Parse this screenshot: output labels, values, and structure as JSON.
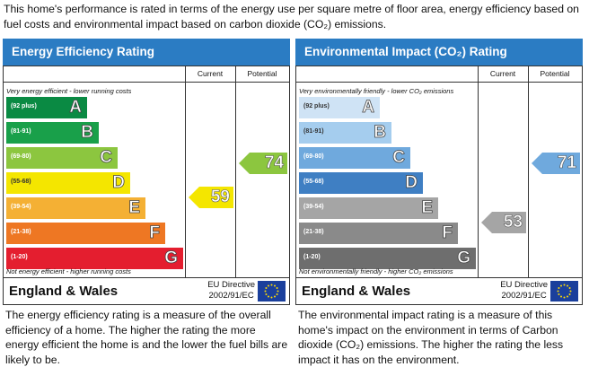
{
  "intro": "This home's performance is rated in terms of the energy use per square metre of floor area, energy efficiency based on fuel costs and environmental impact based on carbon dioxide (CO₂) emissions.",
  "energy": {
    "title": "Energy Efficiency Rating",
    "col_current": "Current",
    "col_potential": "Potential",
    "top_caption": "Very energy efficient - lower running costs",
    "bottom_caption": "Not energy efficient - higher running costs",
    "bands": [
      {
        "range": "(92 plus)",
        "letter": "A",
        "color": "#0a8a43"
      },
      {
        "range": "(81-91)",
        "letter": "B",
        "color": "#19a04a"
      },
      {
        "range": "(69-80)",
        "letter": "C",
        "color": "#8cc63f"
      },
      {
        "range": "(55-68)",
        "letter": "D",
        "color": "#f4e600"
      },
      {
        "range": "(39-54)",
        "letter": "E",
        "color": "#f4b034"
      },
      {
        "range": "(21-38)",
        "letter": "F",
        "color": "#ee7723"
      },
      {
        "range": "(1-20)",
        "letter": "G",
        "color": "#e41e2f"
      }
    ],
    "current": {
      "value": "59",
      "band": "D",
      "color": "#f4e600"
    },
    "potential": {
      "value": "74",
      "band": "C",
      "color": "#8cc63f"
    },
    "region": "England & Wales",
    "directive_line1": "EU Directive",
    "directive_line2": "2002/91/EC",
    "description": "The energy efficiency rating is a measure of the overall efficiency of a home. The higher the rating the more energy efficient the home is and the lower the fuel bills are likely to be."
  },
  "environment": {
    "title": "Environmental Impact (CO₂) Rating",
    "col_current": "Current",
    "col_potential": "Potential",
    "top_caption": "Very environmentally friendly - lower CO₂ emissions",
    "bottom_caption": "Not environmentally friendly - higher CO₂ emissions",
    "bands": [
      {
        "range": "(92 plus)",
        "letter": "A",
        "color": "#cfe3f5"
      },
      {
        "range": "(81-91)",
        "letter": "B",
        "color": "#a5cdee"
      },
      {
        "range": "(69-80)",
        "letter": "C",
        "color": "#6fa9dd"
      },
      {
        "range": "(55-68)",
        "letter": "D",
        "color": "#3f7fc3"
      },
      {
        "range": "(39-54)",
        "letter": "E",
        "color": "#a5a5a5"
      },
      {
        "range": "(21-38)",
        "letter": "F",
        "color": "#8a8a8a"
      },
      {
        "range": "(1-20)",
        "letter": "G",
        "color": "#6e6e6e"
      }
    ],
    "current": {
      "value": "53",
      "band": "E",
      "color": "#a5a5a5"
    },
    "potential": {
      "value": "71",
      "band": "C",
      "color": "#6fa9dd"
    },
    "region": "England & Wales",
    "directive_line1": "EU Directive",
    "directive_line2": "2002/91/EC",
    "description": "The environmental impact rating is a measure of this home's impact on the environment in terms of Carbon dioxide (CO₂) emissions. The higher the rating the less impact it has on the environment."
  }
}
